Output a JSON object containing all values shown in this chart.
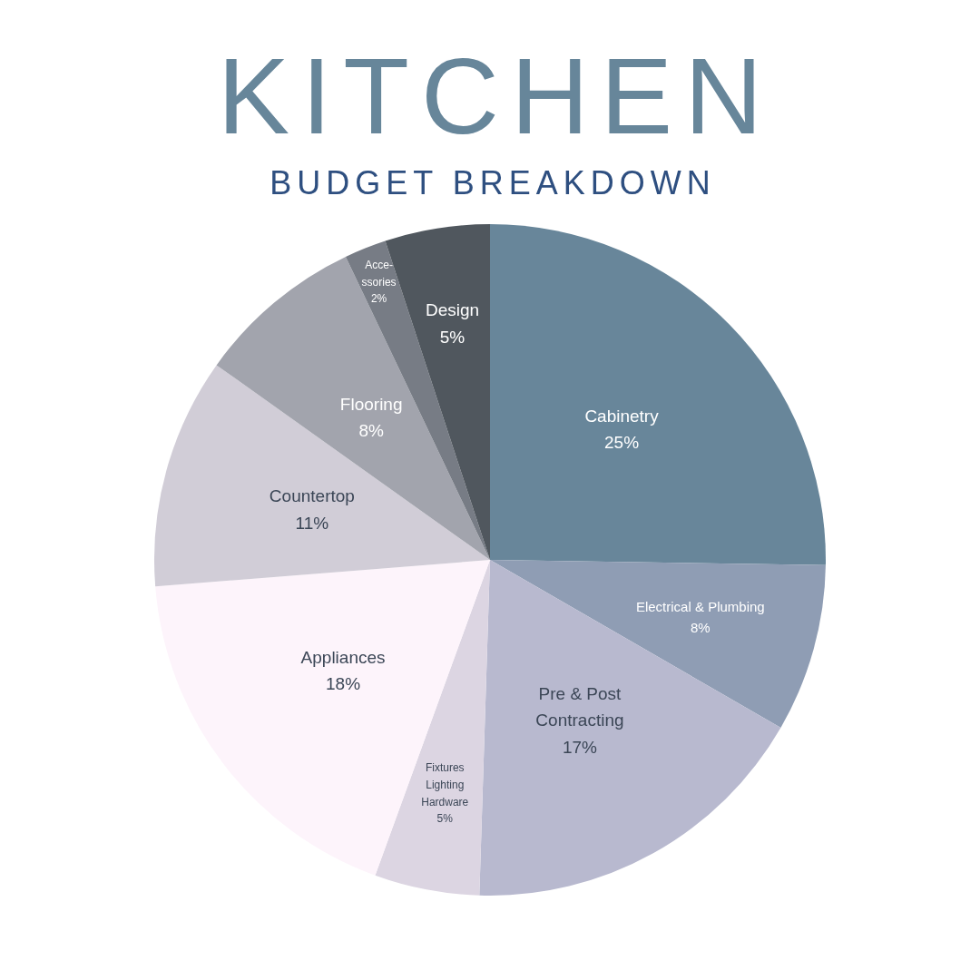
{
  "chart_data": {
    "type": "pie",
    "title": "KITCHEN",
    "subtitle": "BUDGET BREAKDOWN",
    "categories": [
      "Cabinetry",
      "Electrical & Plumbing",
      "Pre & Post\nContracting",
      "Fixtures\nLighting\nHardware",
      "Appliances",
      "Countertop",
      "Flooring",
      "Acce-\nssories",
      "Design"
    ],
    "values": [
      25,
      8,
      17,
      5,
      18,
      11,
      8,
      2,
      5
    ],
    "value_labels": [
      "25%",
      "8%",
      "17%",
      "5%",
      "18%",
      "11%",
      "8%",
      "2%",
      "5%"
    ],
    "colors": [
      "#68869a",
      "#8f9db4",
      "#b8b9cf",
      "#dcd5e2",
      "#fdf4fb",
      "#d1cdd7",
      "#a2a4ad",
      "#777c85",
      "#50575e"
    ]
  }
}
